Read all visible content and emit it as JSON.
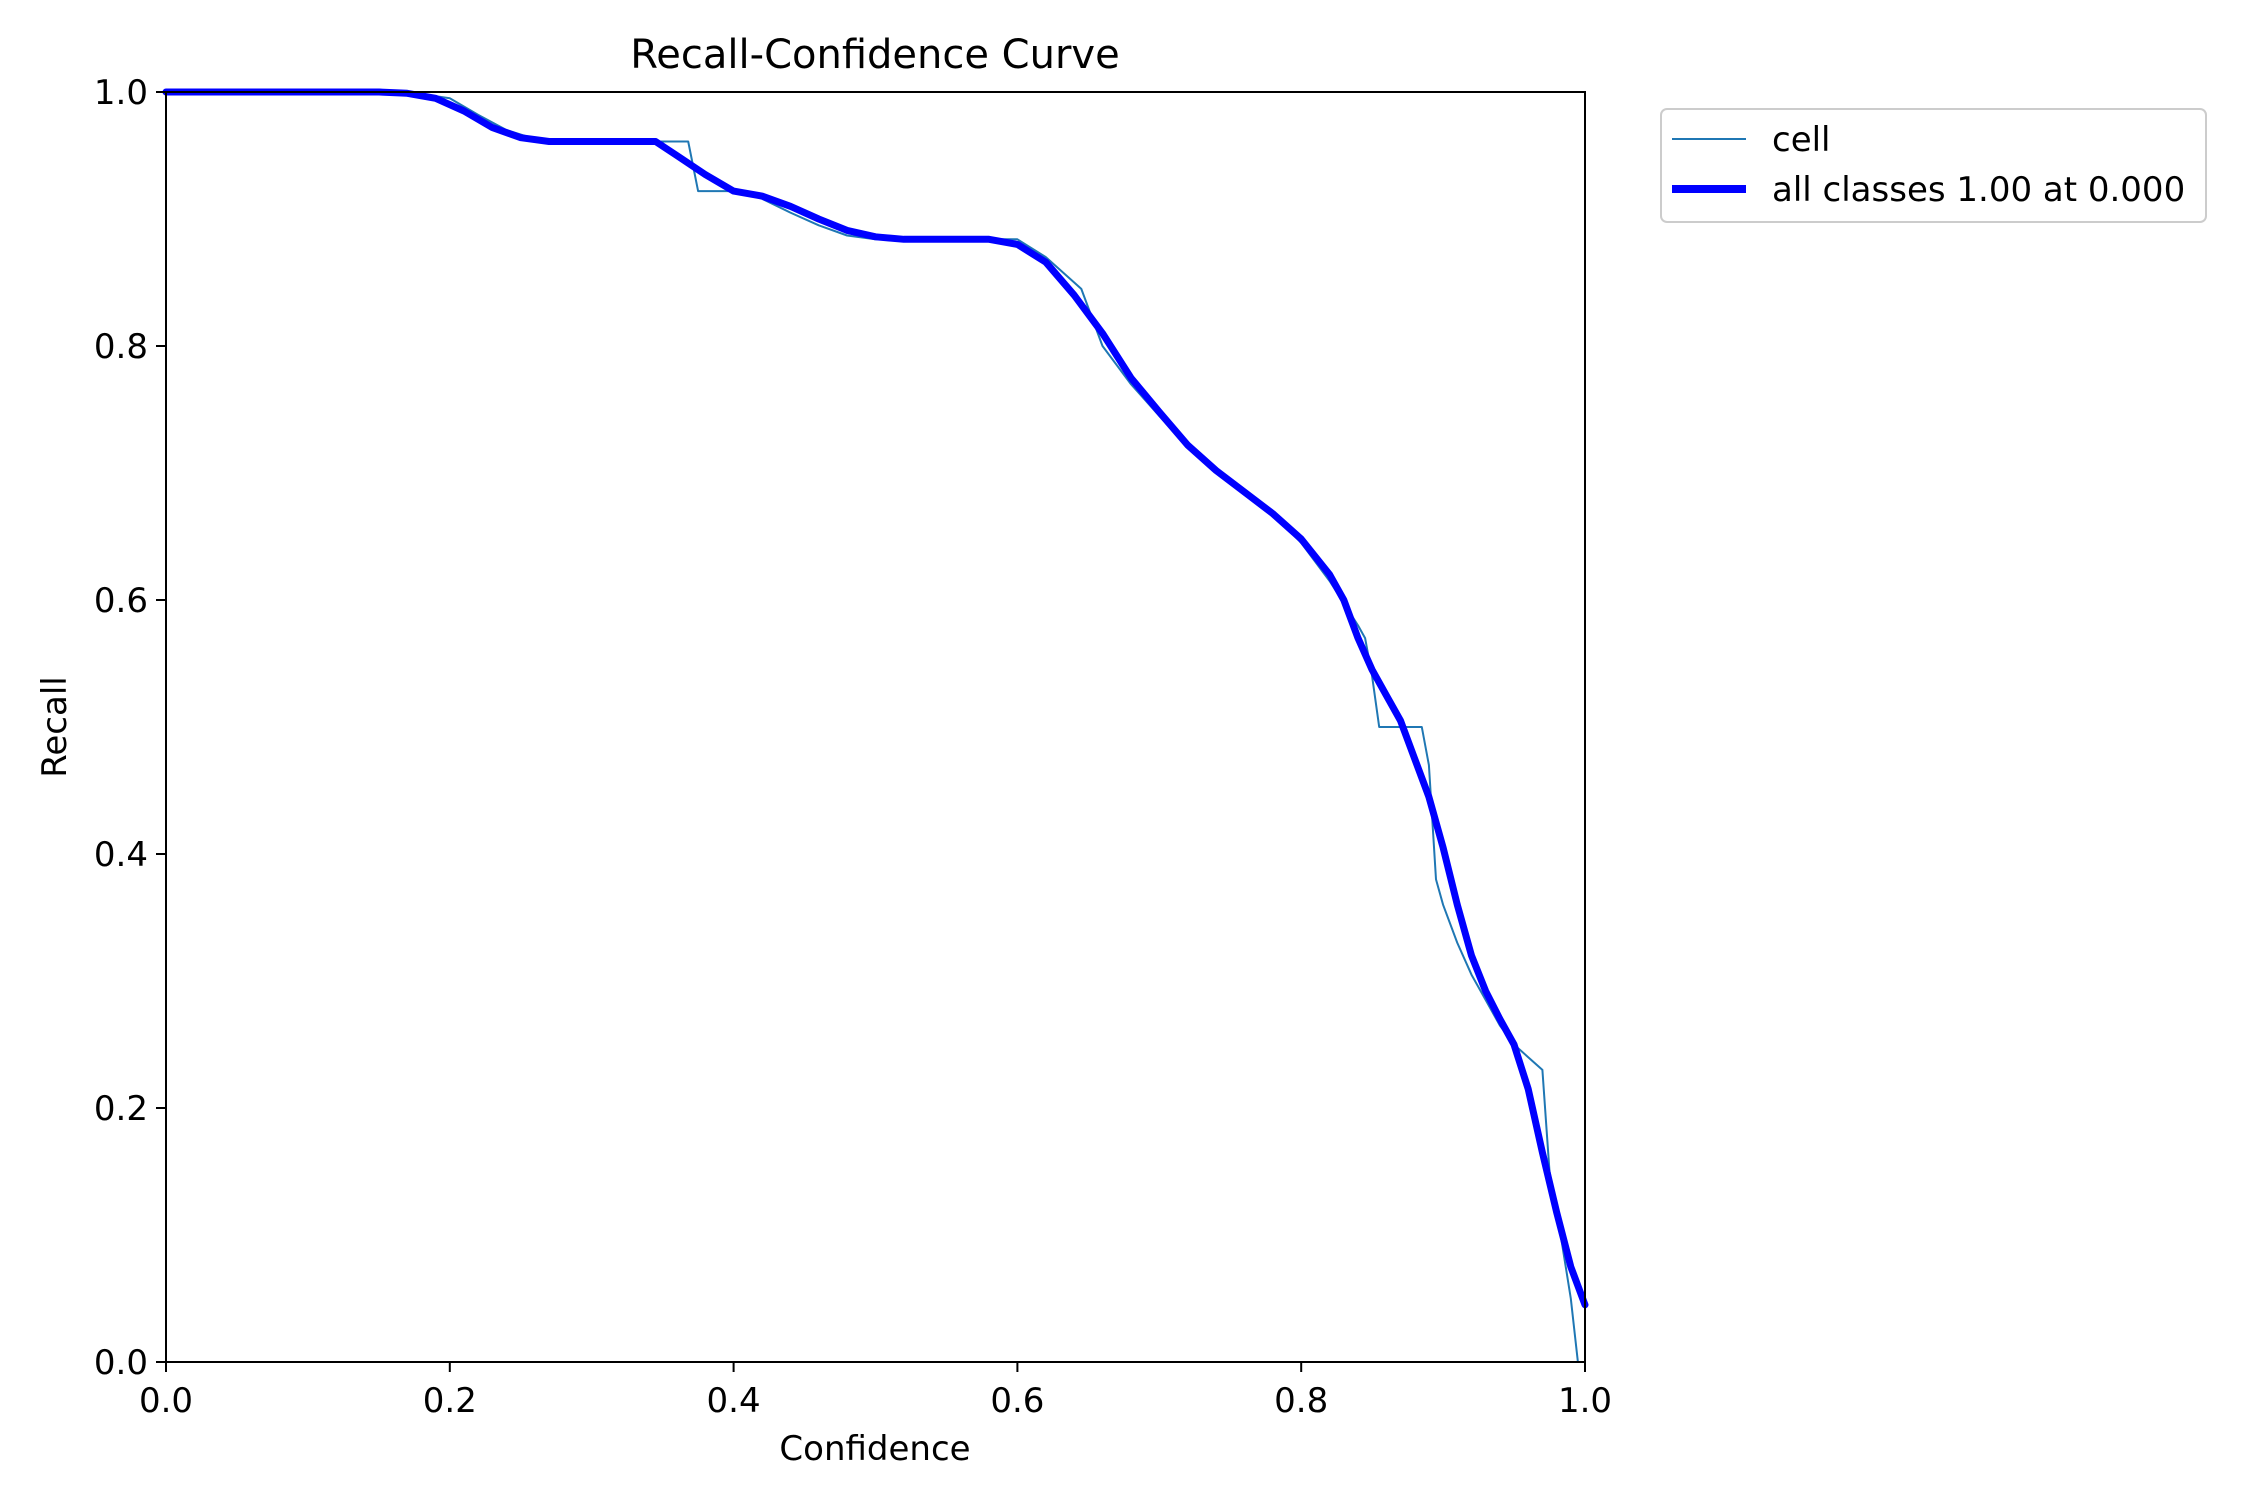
{
  "chart_data": {
    "type": "line",
    "title": "Recall-Confidence Curve",
    "xlabel": "Confidence",
    "ylabel": "Recall",
    "xlim": [
      0.0,
      1.0
    ],
    "ylim": [
      0.0,
      1.0
    ],
    "xticks": [
      "0.0",
      "0.2",
      "0.4",
      "0.6",
      "0.8",
      "1.0"
    ],
    "yticks": [
      "0.0",
      "0.2",
      "0.4",
      "0.6",
      "0.8",
      "1.0"
    ],
    "grid": false,
    "legend_position": "outside upper right",
    "series": [
      {
        "name": "cell",
        "color": "#1f77b4",
        "style": "thin",
        "x": [
          0.0,
          0.05,
          0.1,
          0.15,
          0.17,
          0.2,
          0.22,
          0.24,
          0.26,
          0.28,
          0.3,
          0.32,
          0.34,
          0.36,
          0.368,
          0.375,
          0.38,
          0.39,
          0.4,
          0.42,
          0.44,
          0.46,
          0.48,
          0.5,
          0.52,
          0.54,
          0.56,
          0.58,
          0.6,
          0.62,
          0.64,
          0.645,
          0.66,
          0.68,
          0.7,
          0.72,
          0.74,
          0.76,
          0.78,
          0.8,
          0.82,
          0.84,
          0.845,
          0.85,
          0.855,
          0.86,
          0.87,
          0.885,
          0.89,
          0.895,
          0.9,
          0.91,
          0.92,
          0.93,
          0.94,
          0.95,
          0.96,
          0.97,
          0.975,
          0.98,
          0.99,
          0.995,
          0.996
        ],
        "y": [
          1.0,
          1.0,
          1.0,
          1.0,
          1.0,
          0.995,
          0.982,
          0.97,
          0.963,
          0.961,
          0.961,
          0.961,
          0.961,
          0.961,
          0.961,
          0.922,
          0.922,
          0.922,
          0.922,
          0.916,
          0.905,
          0.895,
          0.887,
          0.884,
          0.884,
          0.884,
          0.884,
          0.884,
          0.884,
          0.87,
          0.85,
          0.845,
          0.8,
          0.77,
          0.745,
          0.72,
          0.7,
          0.683,
          0.668,
          0.645,
          0.615,
          0.58,
          0.57,
          0.54,
          0.5,
          0.5,
          0.5,
          0.5,
          0.47,
          0.38,
          0.36,
          0.33,
          0.305,
          0.285,
          0.265,
          0.25,
          0.24,
          0.23,
          0.15,
          0.12,
          0.05,
          0.0,
          0.0
        ]
      },
      {
        "name": "all classes 1.00 at 0.000",
        "color": "#0000ff",
        "style": "thick",
        "x": [
          0.0,
          0.05,
          0.1,
          0.15,
          0.17,
          0.19,
          0.21,
          0.23,
          0.25,
          0.27,
          0.29,
          0.31,
          0.33,
          0.345,
          0.36,
          0.38,
          0.4,
          0.42,
          0.44,
          0.46,
          0.48,
          0.5,
          0.52,
          0.54,
          0.56,
          0.58,
          0.6,
          0.62,
          0.64,
          0.66,
          0.68,
          0.7,
          0.72,
          0.74,
          0.76,
          0.78,
          0.8,
          0.82,
          0.83,
          0.84,
          0.85,
          0.86,
          0.87,
          0.88,
          0.89,
          0.9,
          0.91,
          0.92,
          0.93,
          0.94,
          0.95,
          0.96,
          0.97,
          0.98,
          0.99,
          1.0
        ],
        "y": [
          1.0,
          1.0,
          1.0,
          1.0,
          0.999,
          0.995,
          0.985,
          0.972,
          0.964,
          0.961,
          0.961,
          0.961,
          0.961,
          0.961,
          0.95,
          0.935,
          0.922,
          0.918,
          0.91,
          0.9,
          0.891,
          0.886,
          0.884,
          0.884,
          0.884,
          0.884,
          0.88,
          0.866,
          0.84,
          0.81,
          0.775,
          0.748,
          0.722,
          0.702,
          0.685,
          0.668,
          0.648,
          0.62,
          0.6,
          0.57,
          0.545,
          0.525,
          0.505,
          0.475,
          0.445,
          0.405,
          0.36,
          0.32,
          0.292,
          0.27,
          0.25,
          0.215,
          0.165,
          0.118,
          0.075,
          0.045
        ]
      }
    ]
  }
}
